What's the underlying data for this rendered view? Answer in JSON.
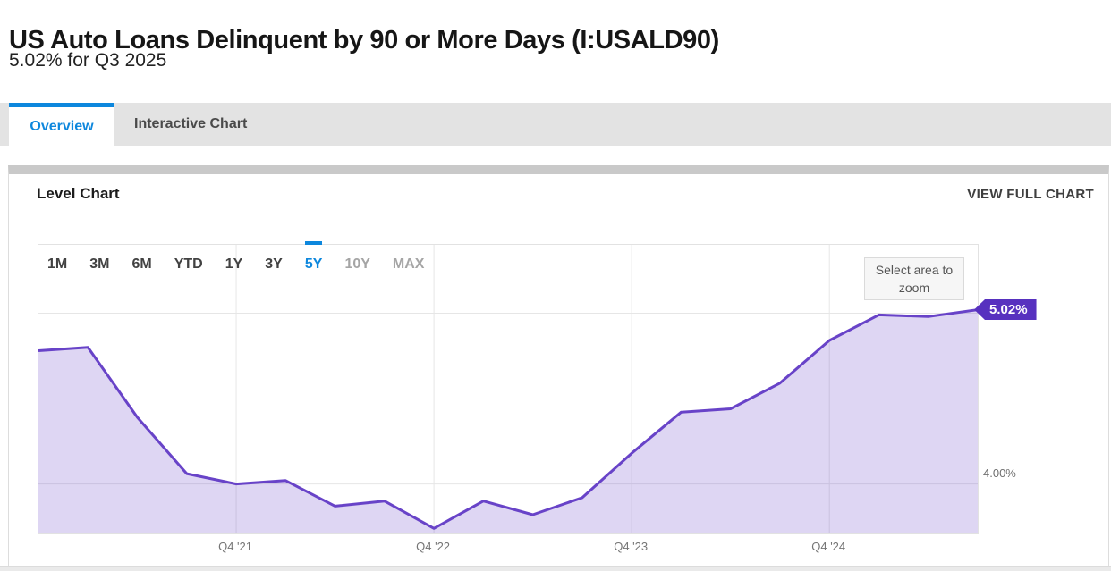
{
  "page": {
    "title": "US Auto Loans Delinquent by 90 or More Days (I:USALD90)",
    "subtitle": "5.02% for Q3 2025"
  },
  "tabs": [
    {
      "label": "Overview",
      "active": true
    },
    {
      "label": "Interactive Chart",
      "active": false
    }
  ],
  "panel": {
    "title": "Level Chart",
    "action_label": "VIEW FULL CHART"
  },
  "range_selector": {
    "options": [
      "1M",
      "3M",
      "6M",
      "YTD",
      "1Y",
      "3Y",
      "5Y",
      "10Y",
      "MAX"
    ],
    "selected": "5Y",
    "disabled": [
      "10Y",
      "MAX"
    ]
  },
  "zoom_hint": {
    "text": "Select area to zoom"
  },
  "colors": {
    "accent_blue": "#0d87dd",
    "line": "#6843c8",
    "fill": "rgba(104,67,200,0.22)",
    "badge": "#5731bf",
    "gridline": "#e6e6e6"
  },
  "chart_data": {
    "type": "area",
    "title": "Level Chart",
    "series_name": "US Auto Loans Delinquent by 90 or More Days (I:USALD90)",
    "unit": "%",
    "x": [
      "Q4 2020",
      "Q1 2021",
      "Q2 2021",
      "Q3 2021",
      "Q4 2021",
      "Q1 2022",
      "Q2 2022",
      "Q3 2022",
      "Q4 2022",
      "Q1 2023",
      "Q2 2023",
      "Q3 2023",
      "Q4 2023",
      "Q1 2024",
      "Q2 2024",
      "Q3 2024",
      "Q4 2024",
      "Q1 2025",
      "Q2 2025",
      "Q3 2025"
    ],
    "values": [
      4.78,
      4.8,
      4.39,
      4.06,
      4.0,
      4.02,
      3.87,
      3.9,
      3.74,
      3.9,
      3.82,
      3.92,
      4.18,
      4.42,
      4.44,
      4.59,
      4.84,
      4.99,
      4.98,
      5.02
    ],
    "ylim": [
      3.71,
      5.4
    ],
    "y_gridlines": [
      {
        "value": 5.0,
        "label": ""
      },
      {
        "value": 4.0,
        "label": "4.00%"
      }
    ],
    "x_ticks": [
      {
        "index": 4,
        "label": "Q4 '21"
      },
      {
        "index": 8,
        "label": "Q4 '22"
      },
      {
        "index": 12,
        "label": "Q4 '23"
      },
      {
        "index": 16,
        "label": "Q4 '24"
      }
    ],
    "last_value_label": "5.02%",
    "grid": true,
    "legend": "none"
  }
}
